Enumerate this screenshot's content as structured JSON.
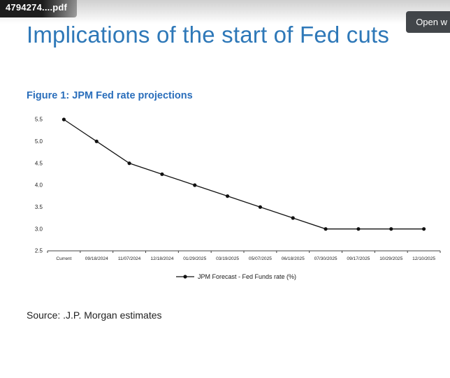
{
  "viewer": {
    "filename": "4794274....pdf",
    "open_with_label": "Open w"
  },
  "page": {
    "title": "Implications of the start of Fed cuts",
    "figure_caption": "Figure 1: JPM Fed rate projections",
    "source": "Source: .J.P. Morgan estimates"
  },
  "colors": {
    "title_blue": "#2E78B8",
    "caption_blue": "#2A6EBB",
    "line_color": "#111111",
    "axis_color": "#444444"
  },
  "chart_data": {
    "type": "line",
    "title": "Figure 1: JPM Fed rate projections",
    "categories": [
      "Current",
      "09/18/2024",
      "11/07/2024",
      "12/18/2024",
      "01/29/2025",
      "03/19/2025",
      "05/07/2025",
      "06/18/2025",
      "07/30/2025",
      "09/17/2025",
      "10/29/2025",
      "12/10/2025"
    ],
    "values": [
      5.5,
      5.0,
      4.5,
      4.25,
      4.0,
      3.75,
      3.5,
      3.25,
      3.0,
      3.0,
      3.0,
      3.0
    ],
    "xlabel": "",
    "ylabel": "",
    "ylim": [
      2.5,
      5.5
    ],
    "ytick_step": 0.5,
    "grid": false,
    "legend": "JPM Forecast - Fed Funds rate (%)",
    "legend_position": "bottom"
  }
}
